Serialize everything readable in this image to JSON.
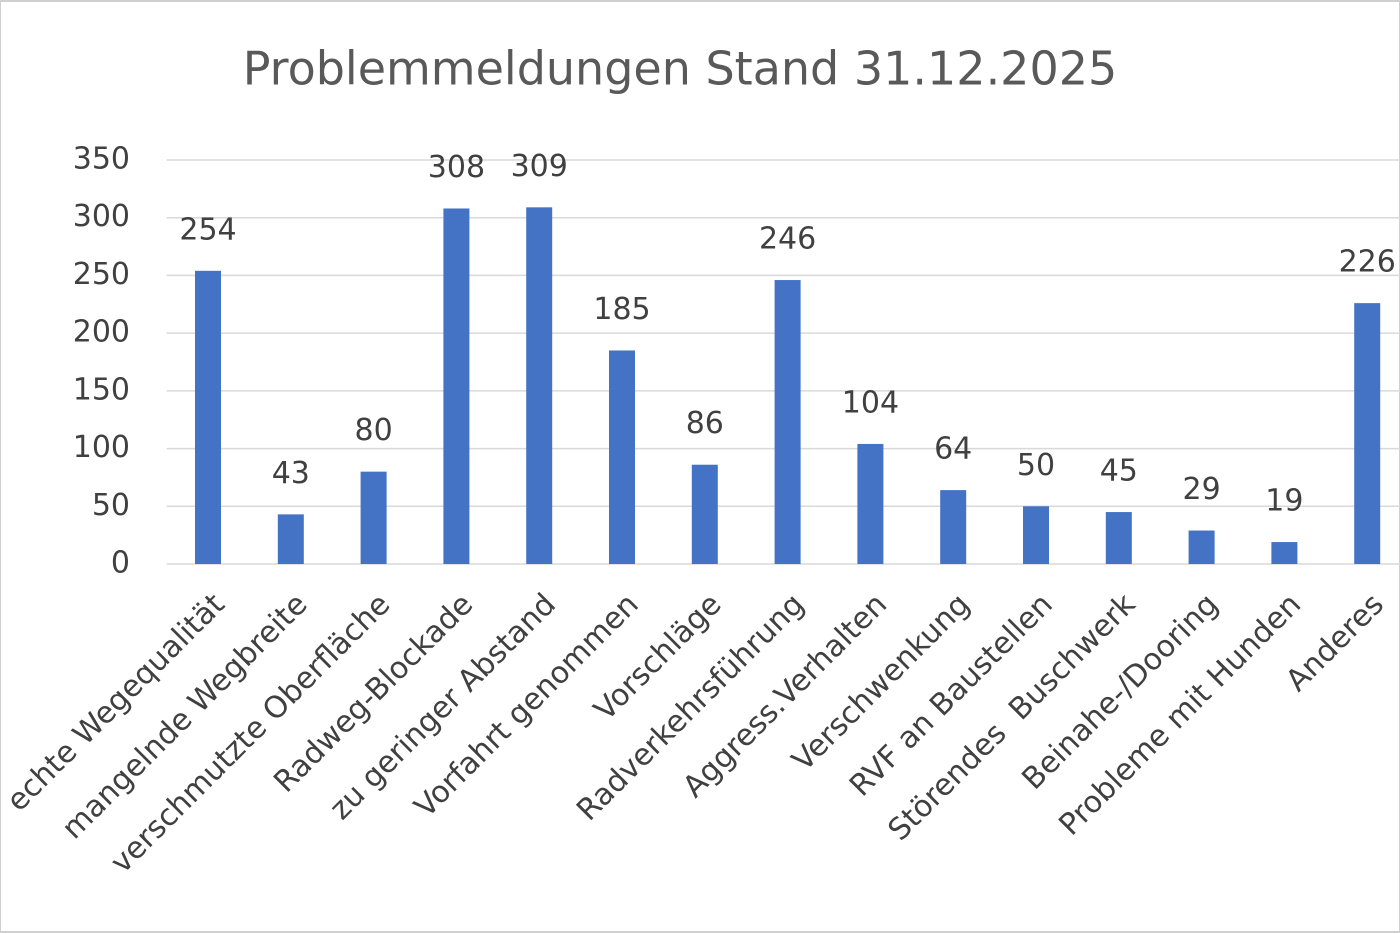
{
  "chart_data": {
    "type": "bar",
    "title": "Problemmeldungen Stand 31.12.2025",
    "categories": [
      "echte Wegequalität",
      "mangelnde Wegbreite",
      "verschmutzte Oberfläche",
      "Radweg-Blockade",
      "zu geringer Abstand",
      "Vorfahrt genommen",
      "Vorschläge",
      "Radverkehrsführung",
      "Aggress.Verhalten",
      "Verschwenkung",
      "RVF an Baustellen",
      "Störendes  Buschwerk",
      "Beinahe-/Dooring",
      "Probleme mit Hunden",
      "Anderes"
    ],
    "values": [
      254,
      43,
      80,
      308,
      309,
      185,
      86,
      246,
      104,
      64,
      50,
      45,
      29,
      19,
      226
    ],
    "color": "#4472c4",
    "ylim": [
      0,
      350
    ],
    "yticks": [
      0,
      50,
      100,
      150,
      200,
      250,
      300,
      350
    ],
    "grid": true
  }
}
